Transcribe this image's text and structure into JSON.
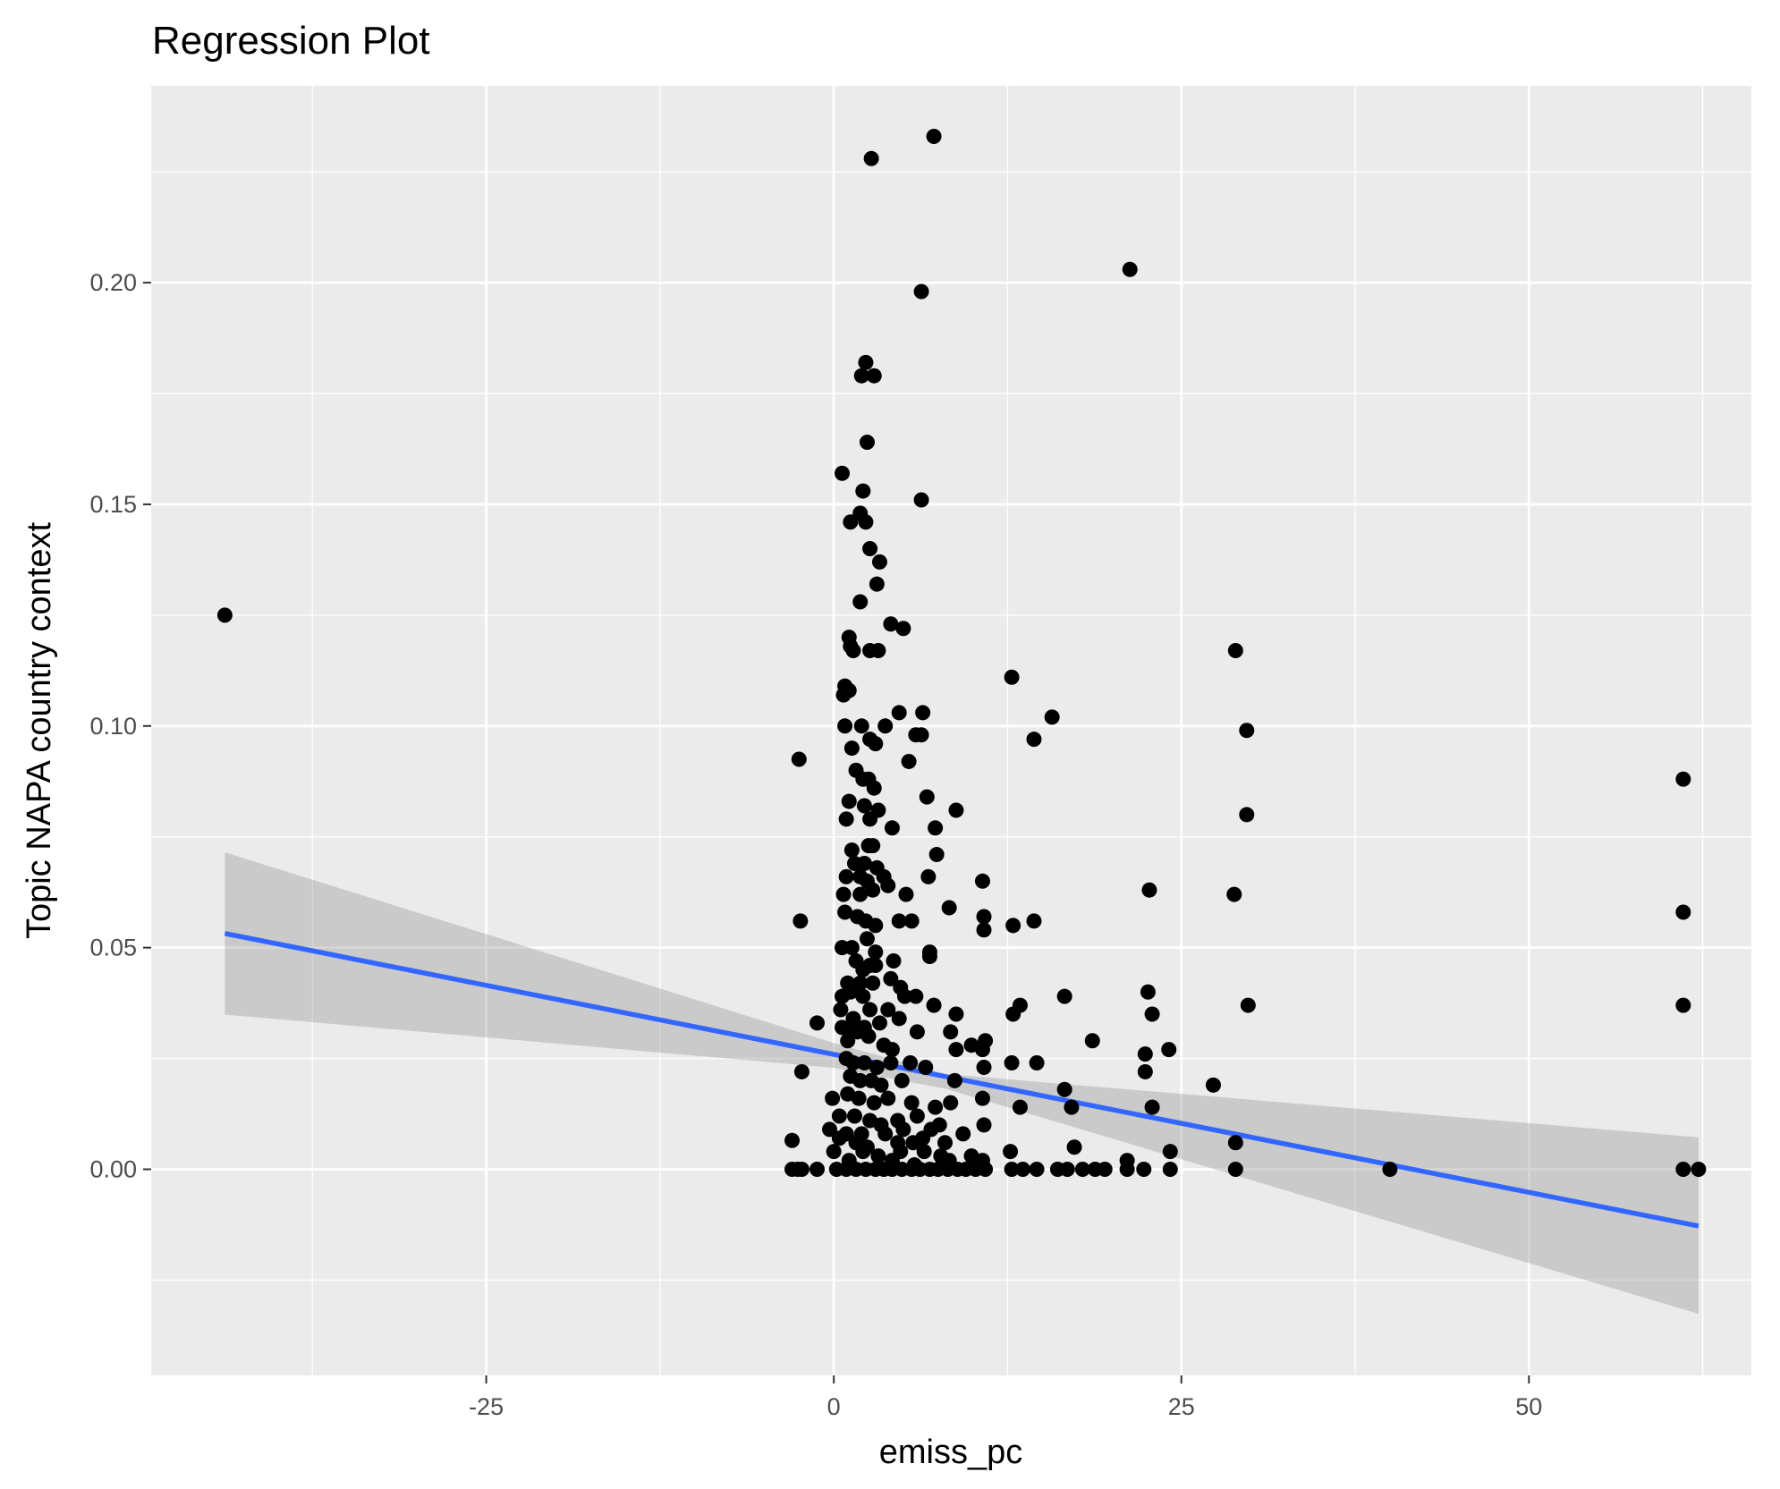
{
  "chart_data": {
    "type": "scatter",
    "title": "Regression Plot",
    "xlabel": "emiss_pc",
    "ylabel": "Topic NAPA country context",
    "xlim": [
      -49.1,
      66.0
    ],
    "ylim": [
      -0.0465,
      0.2444
    ],
    "x_ticks": [
      -25,
      0,
      25,
      50
    ],
    "x_tick_labels": [
      "-25",
      "0",
      "25",
      "50"
    ],
    "y_ticks": [
      0.0,
      0.05,
      0.1,
      0.15,
      0.2
    ],
    "y_tick_labels": [
      "0.00",
      "0.05",
      "0.10",
      "0.15",
      "0.20"
    ],
    "grid": true,
    "colors": {
      "panel_background": "#ebebeb",
      "grid_major": "#ffffff",
      "points": "#000000",
      "fit_line": "#3366ff",
      "confidence_band": "#999999"
    },
    "regression": {
      "x_range": [
        -43.8,
        62.2
      ],
      "line": [
        [
          -43.8,
          0.0532
        ],
        [
          62.2,
          -0.0128
        ]
      ],
      "band_upper": [
        [
          -43.8,
          0.0715
        ],
        [
          0.0,
          0.0285
        ],
        [
          8.0,
          0.0215
        ],
        [
          62.2,
          0.0072
        ]
      ],
      "band_lower": [
        [
          -43.8,
          0.0349
        ],
        [
          0.0,
          0.0229
        ],
        [
          8.0,
          0.0182
        ],
        [
          62.2,
          -0.0326
        ]
      ]
    },
    "series": [
      {
        "points": [
          [
            -43.8,
            0.125
          ],
          [
            2.7,
            0.228
          ],
          [
            7.2,
            0.233
          ],
          [
            6.3,
            0.198
          ],
          [
            21.3,
            0.203
          ],
          [
            2.3,
            0.182
          ],
          [
            2.0,
            0.179
          ],
          [
            2.9,
            0.179
          ],
          [
            2.4,
            0.164
          ],
          [
            0.6,
            0.157
          ],
          [
            2.1,
            0.153
          ],
          [
            6.3,
            0.151
          ],
          [
            1.2,
            0.146
          ],
          [
            2.3,
            0.146
          ],
          [
            1.9,
            0.148
          ],
          [
            2.6,
            0.14
          ],
          [
            3.3,
            0.137
          ],
          [
            3.1,
            0.132
          ],
          [
            1.9,
            0.128
          ],
          [
            4.1,
            0.123
          ],
          [
            5.0,
            0.122
          ],
          [
            1.1,
            0.12
          ],
          [
            1.4,
            0.117
          ],
          [
            2.6,
            0.117
          ],
          [
            3.2,
            0.117
          ],
          [
            1.2,
            0.118
          ],
          [
            0.8,
            0.109
          ],
          [
            1.1,
            0.108
          ],
          [
            0.7,
            0.107
          ],
          [
            12.8,
            0.111
          ],
          [
            15.7,
            0.102
          ],
          [
            14.4,
            0.097
          ],
          [
            28.9,
            0.117
          ],
          [
            29.7,
            0.099
          ],
          [
            29.7,
            0.08
          ],
          [
            28.8,
            0.062
          ],
          [
            -2.5,
            0.0925
          ],
          [
            0.8,
            0.1
          ],
          [
            2.0,
            0.1
          ],
          [
            2.6,
            0.097
          ],
          [
            3.0,
            0.096
          ],
          [
            1.3,
            0.095
          ],
          [
            3.7,
            0.1
          ],
          [
            4.7,
            0.103
          ],
          [
            6.4,
            0.103
          ],
          [
            5.9,
            0.098
          ],
          [
            6.3,
            0.098
          ],
          [
            5.4,
            0.092
          ],
          [
            1.6,
            0.09
          ],
          [
            2.1,
            0.088
          ],
          [
            2.5,
            0.088
          ],
          [
            1.1,
            0.083
          ],
          [
            2.2,
            0.082
          ],
          [
            2.9,
            0.086
          ],
          [
            3.2,
            0.081
          ],
          [
            0.9,
            0.079
          ],
          [
            2.6,
            0.079
          ],
          [
            6.7,
            0.084
          ],
          [
            8.8,
            0.081
          ],
          [
            7.3,
            0.077
          ],
          [
            4.2,
            0.077
          ],
          [
            7.4,
            0.071
          ],
          [
            1.3,
            0.072
          ],
          [
            2.5,
            0.073
          ],
          [
            2.8,
            0.073
          ],
          [
            1.5,
            0.069
          ],
          [
            2.2,
            0.069
          ],
          [
            0.9,
            0.066
          ],
          [
            1.9,
            0.066
          ],
          [
            3.1,
            0.068
          ],
          [
            3.6,
            0.066
          ],
          [
            2.4,
            0.065
          ],
          [
            3.9,
            0.064
          ],
          [
            6.8,
            0.066
          ],
          [
            10.7,
            0.065
          ],
          [
            0.7,
            0.062
          ],
          [
            1.9,
            0.062
          ],
          [
            2.8,
            0.063
          ],
          [
            5.2,
            0.062
          ],
          [
            8.3,
            0.059
          ],
          [
            22.7,
            0.063
          ],
          [
            -2.4,
            0.056
          ],
          [
            0.8,
            0.058
          ],
          [
            1.7,
            0.057
          ],
          [
            2.3,
            0.056
          ],
          [
            3.0,
            0.055
          ],
          [
            4.7,
            0.056
          ],
          [
            5.6,
            0.056
          ],
          [
            10.8,
            0.057
          ],
          [
            10.8,
            0.054
          ],
          [
            12.9,
            0.055
          ],
          [
            14.4,
            0.056
          ],
          [
            0.6,
            0.05
          ],
          [
            1.3,
            0.05
          ],
          [
            2.4,
            0.052
          ],
          [
            3.0,
            0.049
          ],
          [
            6.9,
            0.049
          ],
          [
            6.9,
            0.048
          ],
          [
            1.6,
            0.047
          ],
          [
            2.1,
            0.045
          ],
          [
            2.6,
            0.046
          ],
          [
            3.0,
            0.046
          ],
          [
            4.3,
            0.047
          ],
          [
            1.0,
            0.042
          ],
          [
            1.9,
            0.042
          ],
          [
            2.8,
            0.042
          ],
          [
            4.1,
            0.043
          ],
          [
            4.8,
            0.041
          ],
          [
            5.1,
            0.039
          ],
          [
            0.6,
            0.039
          ],
          [
            1.2,
            0.04
          ],
          [
            2.1,
            0.039
          ],
          [
            5.9,
            0.039
          ],
          [
            7.2,
            0.037
          ],
          [
            16.6,
            0.039
          ],
          [
            22.6,
            0.04
          ],
          [
            29.8,
            0.037
          ],
          [
            0.5,
            0.036
          ],
          [
            1.4,
            0.034
          ],
          [
            2.6,
            0.036
          ],
          [
            3.9,
            0.036
          ],
          [
            13.4,
            0.037
          ],
          [
            12.9,
            0.035
          ],
          [
            22.9,
            0.035
          ],
          [
            -1.2,
            0.033
          ],
          [
            0.6,
            0.032
          ],
          [
            1.3,
            0.032
          ],
          [
            2.2,
            0.032
          ],
          [
            3.3,
            0.033
          ],
          [
            4.7,
            0.034
          ],
          [
            8.8,
            0.035
          ],
          [
            1.0,
            0.029
          ],
          [
            1.7,
            0.031
          ],
          [
            2.5,
            0.03
          ],
          [
            3.6,
            0.028
          ],
          [
            4.2,
            0.027
          ],
          [
            6.0,
            0.031
          ],
          [
            8.4,
            0.031
          ],
          [
            8.8,
            0.027
          ],
          [
            9.9,
            0.028
          ],
          [
            10.7,
            0.027
          ],
          [
            10.9,
            0.029
          ],
          [
            18.6,
            0.029
          ],
          [
            22.4,
            0.026
          ],
          [
            24.1,
            0.027
          ],
          [
            0.9,
            0.025
          ],
          [
            1.4,
            0.024
          ],
          [
            2.2,
            0.024
          ],
          [
            3.1,
            0.023
          ],
          [
            4.1,
            0.024
          ],
          [
            5.5,
            0.024
          ],
          [
            6.6,
            0.023
          ],
          [
            -2.3,
            0.022
          ],
          [
            1.2,
            0.021
          ],
          [
            1.9,
            0.02
          ],
          [
            2.7,
            0.02
          ],
          [
            3.4,
            0.019
          ],
          [
            4.9,
            0.02
          ],
          [
            8.7,
            0.02
          ],
          [
            10.8,
            0.023
          ],
          [
            12.8,
            0.024
          ],
          [
            14.6,
            0.024
          ],
          [
            22.4,
            0.022
          ],
          [
            16.6,
            0.018
          ],
          [
            27.3,
            0.019
          ],
          [
            -0.1,
            0.016
          ],
          [
            1.0,
            0.017
          ],
          [
            1.8,
            0.016
          ],
          [
            2.9,
            0.015
          ],
          [
            3.9,
            0.016
          ],
          [
            5.6,
            0.015
          ],
          [
            7.3,
            0.014
          ],
          [
            8.4,
            0.015
          ],
          [
            10.7,
            0.016
          ],
          [
            13.4,
            0.014
          ],
          [
            17.1,
            0.014
          ],
          [
            22.9,
            0.014
          ],
          [
            0.4,
            0.012
          ],
          [
            1.5,
            0.012
          ],
          [
            2.6,
            0.011
          ],
          [
            3.4,
            0.01
          ],
          [
            4.6,
            0.011
          ],
          [
            6.0,
            0.012
          ],
          [
            7.6,
            0.01
          ],
          [
            -0.3,
            0.009
          ],
          [
            0.9,
            0.008
          ],
          [
            2.0,
            0.008
          ],
          [
            3.7,
            0.008
          ],
          [
            5.0,
            0.009
          ],
          [
            6.4,
            0.007
          ],
          [
            7.0,
            0.009
          ],
          [
            9.3,
            0.008
          ],
          [
            10.8,
            0.01
          ],
          [
            -3.0,
            0.0065
          ],
          [
            0.4,
            0.007
          ],
          [
            1.6,
            0.006
          ],
          [
            2.4,
            0.005
          ],
          [
            4.6,
            0.006
          ],
          [
            5.7,
            0.006
          ],
          [
            8.0,
            0.006
          ],
          [
            17.3,
            0.005
          ],
          [
            28.9,
            0.006
          ],
          [
            0.0,
            0.004
          ],
          [
            2.1,
            0.004
          ],
          [
            3.2,
            0.003
          ],
          [
            4.8,
            0.004
          ],
          [
            6.5,
            0.004
          ],
          [
            7.7,
            0.003
          ],
          [
            9.9,
            0.003
          ],
          [
            12.7,
            0.004
          ],
          [
            24.2,
            0.004
          ],
          [
            1.1,
            0.002
          ],
          [
            4.2,
            0.002
          ],
          [
            5.8,
            0.001
          ],
          [
            8.3,
            0.002
          ],
          [
            10.7,
            0.002
          ],
          [
            21.1,
            0.002
          ],
          [
            -3.0,
            0.0
          ],
          [
            -2.6,
            0.0
          ],
          [
            -2.3,
            0.0
          ],
          [
            -1.2,
            0.0
          ],
          [
            0.2,
            0.0
          ],
          [
            0.9,
            0.0
          ],
          [
            1.6,
            0.0
          ],
          [
            2.3,
            0.0
          ],
          [
            3.0,
            0.0
          ],
          [
            3.6,
            0.0
          ],
          [
            4.2,
            0.0
          ],
          [
            4.9,
            0.0
          ],
          [
            5.6,
            0.0
          ],
          [
            6.2,
            0.0
          ],
          [
            6.9,
            0.0
          ],
          [
            7.5,
            0.0
          ],
          [
            8.2,
            0.0
          ],
          [
            8.9,
            0.0
          ],
          [
            9.5,
            0.0
          ],
          [
            10.2,
            0.0
          ],
          [
            10.9,
            0.0
          ],
          [
            12.8,
            0.0
          ],
          [
            13.6,
            0.0
          ],
          [
            14.6,
            0.0
          ],
          [
            16.1,
            0.0
          ],
          [
            16.8,
            0.0
          ],
          [
            17.9,
            0.0
          ],
          [
            18.8,
            0.0
          ],
          [
            19.5,
            0.0
          ],
          [
            21.1,
            0.0
          ],
          [
            22.3,
            0.0
          ],
          [
            24.2,
            0.0
          ],
          [
            28.9,
            0.0
          ],
          [
            40.0,
            0.0
          ],
          [
            61.1,
            0.088
          ],
          [
            61.1,
            0.058
          ],
          [
            61.1,
            0.037
          ],
          [
            61.1,
            0.0
          ],
          [
            62.2,
            0.0
          ]
        ]
      }
    ]
  }
}
